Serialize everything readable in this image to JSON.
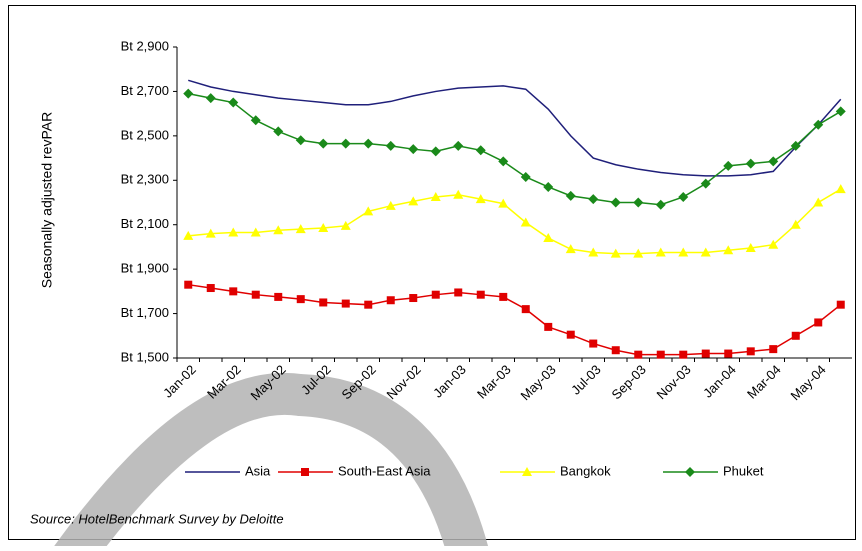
{
  "chart_data": {
    "type": "line",
    "y_label": "Seasonally adjusted revPAR",
    "source": "Source:  HotelBenchmark Survey by Deloitte",
    "categories": [
      "Jan-02",
      null,
      "Mar-02",
      null,
      "May-02",
      null,
      "Jul-02",
      null,
      "Sep-02",
      null,
      "Nov-02",
      null,
      "Jan-03",
      null,
      "Mar-03",
      null,
      "May-03",
      null,
      "Jul-03",
      null,
      "Sep-03",
      null,
      "Nov-03",
      null,
      "Jan-04",
      null,
      "Mar-04",
      null,
      "May-04",
      null
    ],
    "ylim": [
      1500,
      2900
    ],
    "yticks": [
      {
        "value": 1500,
        "label": "Bt 1,500"
      },
      {
        "value": 1700,
        "label": "Bt 1,700"
      },
      {
        "value": 1900,
        "label": "Bt 1,900"
      },
      {
        "value": 2100,
        "label": "Bt 2,100"
      },
      {
        "value": 2300,
        "label": "Bt 2,300"
      },
      {
        "value": 2500,
        "label": "Bt 2,500"
      },
      {
        "value": 2700,
        "label": "Bt 2,700"
      },
      {
        "value": 2900,
        "label": "Bt 2,900"
      }
    ],
    "grid": false,
    "series": [
      {
        "name": "Asia",
        "color": "#1f1f7a",
        "marker": "none",
        "values": [
          2750,
          2720,
          2700,
          2685,
          2670,
          2660,
          2650,
          2640,
          2640,
          2655,
          2680,
          2700,
          2715,
          2720,
          2725,
          2710,
          2620,
          2500,
          2400,
          2370,
          2350,
          2335,
          2325,
          2320,
          2320,
          2325,
          2340,
          2450,
          2550,
          2665
        ]
      },
      {
        "name": "South-East Asia",
        "color": "#e00000",
        "marker": "square",
        "values": [
          1830,
          1815,
          1800,
          1785,
          1775,
          1765,
          1750,
          1745,
          1740,
          1760,
          1770,
          1785,
          1795,
          1785,
          1775,
          1720,
          1640,
          1605,
          1565,
          1535,
          1515,
          1515,
          1515,
          1520,
          1520,
          1530,
          1540,
          1600,
          1660,
          1740
        ]
      },
      {
        "name": "Bangkok",
        "color": "#ffff00",
        "marker": "triangle",
        "values": [
          2050,
          2060,
          2065,
          2065,
          2075,
          2080,
          2085,
          2095,
          2160,
          2185,
          2205,
          2225,
          2235,
          2215,
          2195,
          2110,
          2040,
          1990,
          1975,
          1970,
          1970,
          1975,
          1975,
          1975,
          1985,
          1995,
          2010,
          2100,
          2200,
          2260
        ]
      },
      {
        "name": "Phuket",
        "color": "#1a8a1a",
        "marker": "diamond",
        "values": [
          2690,
          2670,
          2650,
          2570,
          2520,
          2480,
          2465,
          2465,
          2465,
          2455,
          2440,
          2430,
          2455,
          2435,
          2385,
          2315,
          2270,
          2230,
          2215,
          2200,
          2200,
          2190,
          2225,
          2285,
          2365,
          2375,
          2385,
          2455,
          2550,
          2610
        ]
      }
    ]
  }
}
